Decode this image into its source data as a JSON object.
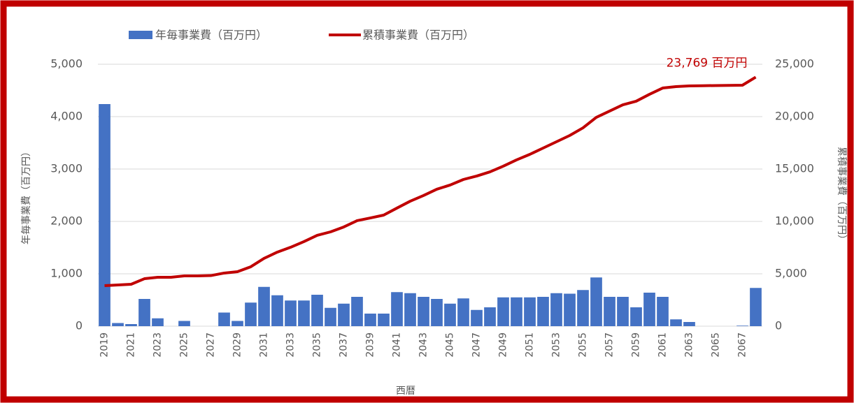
{
  "chart_data": {
    "type": "combo",
    "categories": [
      "2019",
      null,
      "2021",
      null,
      "2023",
      null,
      "2025",
      null,
      "2027",
      null,
      "2029",
      null,
      "2031",
      null,
      "2033",
      null,
      "2035",
      null,
      "2037",
      null,
      "2039",
      null,
      "2041",
      null,
      "2043",
      null,
      "2045",
      null,
      "2047",
      null,
      "2049",
      null,
      "2051",
      null,
      "2053",
      null,
      "2055",
      null,
      "2057",
      null,
      "2059",
      null,
      "2061",
      null,
      "2063",
      null,
      "2065",
      null,
      "2067",
      null
    ],
    "series": [
      {
        "name": "年毎事業費（百万円）",
        "type": "bar",
        "color": "#4472c4",
        "axis": "y",
        "values": [
          4240,
          60,
          40,
          520,
          150,
          0,
          100,
          0,
          0,
          260,
          100,
          450,
          750,
          590,
          490,
          490,
          600,
          350,
          430,
          560,
          240,
          240,
          650,
          630,
          560,
          520,
          430,
          530,
          310,
          360,
          550,
          550,
          550,
          560,
          630,
          620,
          690,
          930,
          560,
          560,
          360,
          640,
          560,
          130,
          80,
          0,
          0,
          0,
          10,
          730
        ]
      },
      {
        "name": "累積事業費（百万円）",
        "type": "line",
        "color": "#c00000",
        "axis": "y2",
        "values": [
          3870,
          3930,
          4000,
          4530,
          4670,
          4670,
          4800,
          4800,
          4830,
          5070,
          5200,
          5670,
          6470,
          7070,
          7530,
          8070,
          8670,
          9000,
          9470,
          10070,
          10330,
          10600,
          11270,
          11930,
          12470,
          13070,
          13470,
          14000,
          14330,
          14730,
          15270,
          15870,
          16400,
          17000,
          17600,
          18200,
          18930,
          19930,
          20530,
          21130,
          21470,
          22130,
          22730,
          22870,
          22930,
          22950,
          22970,
          22980,
          23000,
          23769
        ]
      }
    ],
    "annotation": "23,769 百万円",
    "xlabel": "西暦",
    "ylabel": "年毎事業費（百万円）",
    "y2label": "累積事業費（百万円）",
    "ylim": [
      0,
      5000
    ],
    "yticks": [
      0,
      {
        "value": 1000,
        "label": "1,000"
      },
      {
        "value": 2000,
        "label": "2,000"
      },
      {
        "value": 3000,
        "label": "3,000"
      },
      {
        "value": 4000,
        "label": "4,000"
      },
      {
        "value": 5000,
        "label": "5,000"
      }
    ],
    "y2lim": [
      0,
      25000
    ],
    "y2ticks": [
      0,
      {
        "value": 5000,
        "label": "5,000"
      },
      {
        "value": 10000,
        "label": "10,000"
      },
      {
        "value": 15000,
        "label": "15,000"
      },
      {
        "value": 20000,
        "label": "20,000"
      },
      {
        "value": 25000,
        "label": "25,000"
      }
    ],
    "grid": true,
    "legend": "top"
  }
}
